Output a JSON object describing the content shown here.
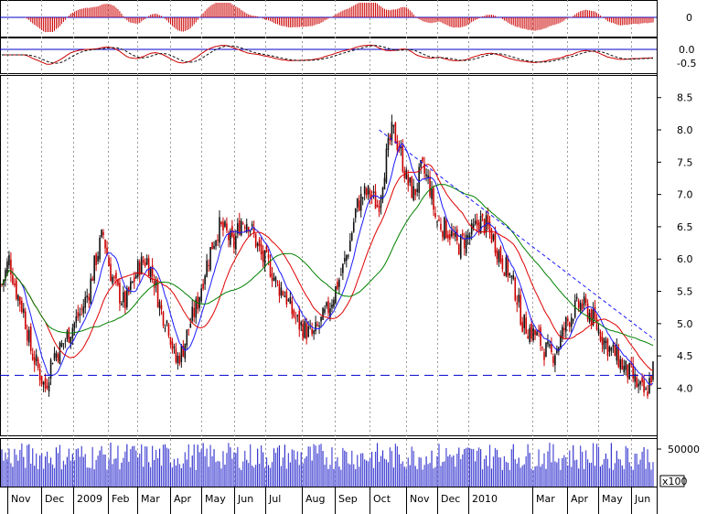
{
  "chart_data": {
    "type": "candlestick",
    "title": "",
    "x_labels": [
      "Nov",
      "Dec",
      "2009",
      "Feb",
      "Mar",
      "Apr",
      "May",
      "Jun",
      "Jul",
      "Aug",
      "Sep",
      "Oct",
      "Nov",
      "Dec",
      "2010",
      "Mar",
      "Apr",
      "May",
      "Jun"
    ],
    "price_ticks": [
      "4.0",
      "4.5",
      "5.0",
      "5.5",
      "6.0",
      "6.5",
      "7.0",
      "7.5",
      "8.0",
      "8.5"
    ],
    "price_range": [
      3.27,
      8.85
    ],
    "osc1_tick": "0",
    "osc2_ticks": [
      "0.0",
      "-0.5"
    ],
    "volume_tick": "50000",
    "volume_unit": "x100",
    "support_level": 4.2,
    "close_series": [
      5.6,
      6.0,
      5.5,
      5.2,
      4.6,
      4.3,
      4.0,
      4.5,
      4.6,
      4.8,
      5.0,
      5.2,
      5.5,
      6.0,
      6.4,
      5.8,
      5.5,
      5.3,
      5.6,
      5.9,
      6.0,
      5.7,
      5.2,
      5.0,
      4.4,
      4.6,
      5.0,
      5.3,
      5.8,
      6.2,
      6.5,
      6.4,
      6.2,
      6.6,
      6.6,
      6.3,
      6.0,
      5.9,
      5.6,
      5.5,
      5.2,
      5.0,
      4.9,
      4.8,
      5.0,
      5.2,
      5.5,
      5.8,
      6.2,
      6.8,
      7.0,
      7.0,
      6.8,
      7.5,
      8.0,
      7.7,
      7.2,
      7.0,
      7.4,
      7.2,
      6.6,
      6.5,
      6.4,
      6.2,
      6.3,
      6.4,
      6.6,
      6.5,
      6.3,
      6.0,
      5.8,
      5.5,
      5.0,
      4.9,
      4.8,
      4.6,
      4.5,
      4.7,
      5.0,
      5.2,
      5.3,
      5.2,
      5.0,
      4.8,
      4.6,
      4.5,
      4.3,
      4.2,
      4.0,
      3.9,
      4.3
    ],
    "volume_scale": 100,
    "colors": {
      "candle": "#cc0000",
      "candle_dark": "#111111",
      "ma_short": "#1a1aff",
      "ma_mid": "#e00000",
      "ma_long": "#008000",
      "zero_line": "#0000cc",
      "grid": "#999999",
      "support": "#0000cc"
    }
  }
}
